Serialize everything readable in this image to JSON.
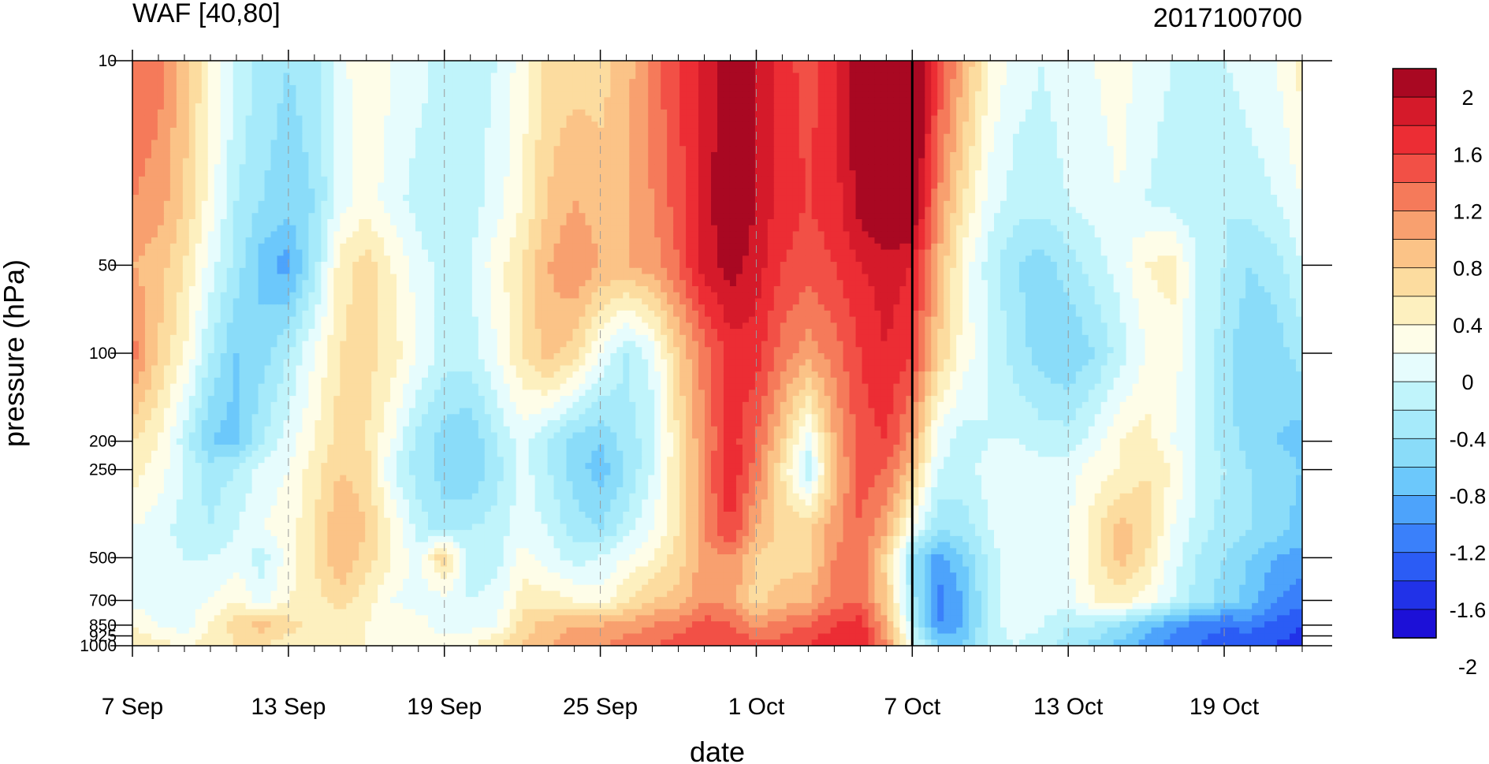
{
  "chart_data": {
    "type": "heatmap",
    "title": "WAF [40,80]",
    "subtitle": "2017100700",
    "xlabel": "date",
    "ylabel": "pressure (hPa)",
    "x_ticks": [
      "7 Sep",
      "13 Sep",
      "19 Sep",
      "25 Sep",
      "1 Oct",
      "7 Oct",
      "13 Oct",
      "19 Oct"
    ],
    "x_range": [
      "2017-09-07",
      "2017-10-22"
    ],
    "y_levels": [
      10,
      50,
      100,
      200,
      250,
      500,
      700,
      850,
      925,
      1000
    ],
    "y_tick_labels": [
      "10",
      "50",
      "100",
      "200",
      "250",
      "500",
      "700",
      "850",
      "925",
      "1000"
    ],
    "y_scale": "log",
    "y_direction": "reversed",
    "colorbar_labels": [
      "2",
      "1.6",
      "1.2",
      "0.8",
      "0.4",
      "0",
      "-0.4",
      "-0.8",
      "-1.2",
      "-1.6",
      "-2"
    ],
    "contour_levels": [
      -2.2,
      -2.0,
      -1.8,
      -1.6,
      -1.4,
      -1.2,
      -1.0,
      -0.8,
      -0.6,
      -0.4,
      -0.2,
      0.0,
      0.2,
      0.4,
      0.6,
      0.8,
      1.0,
      1.2,
      1.4,
      1.6,
      1.8,
      2.0,
      2.2
    ],
    "colors": [
      "#1c10d7",
      "#2132e8",
      "#2b5cf5",
      "#3a80fa",
      "#4da3fb",
      "#6cc8fb",
      "#8adcf9",
      "#a6eafa",
      "#c0f4fb",
      "#e6fcfd",
      "#fefde8",
      "#fdf0bf",
      "#fcdc9f",
      "#fbc387",
      "#f8a06f",
      "#f57a5a",
      "#f25046",
      "#ec2d34",
      "#d51a2a",
      "#a90822"
    ],
    "current_date_marker": "7 Oct",
    "grid": "dashed vertical lines at x ticks",
    "colorbar_placement": "right",
    "field_anchors": {
      "days": [
        0,
        1,
        2,
        3,
        4,
        5,
        6,
        7,
        8,
        9,
        10,
        11,
        12,
        13,
        14,
        15,
        16,
        17,
        18,
        19,
        20,
        21,
        22,
        23,
        24,
        25,
        26,
        27,
        28,
        29,
        30,
        31,
        32,
        33,
        34,
        35,
        36,
        37,
        38,
        39,
        40,
        41,
        42,
        43,
        44,
        45
      ],
      "levels": [
        10,
        30,
        50,
        100,
        200,
        250,
        400,
        500,
        700,
        850,
        1000
      ],
      "values": [
        [
          1.0,
          0.9,
          0.5,
          0.0,
          -0.4,
          -0.7,
          -0.8,
          -0.7,
          -0.3,
          0.0,
          -0.2,
          -0.3,
          -0.5,
          -0.5,
          -0.4,
          -0.1,
          0.3,
          0.3,
          0.3,
          0.5,
          0.9,
          1.2,
          1.5,
          1.7,
          1.6,
          1.3,
          1.1,
          1.4,
          1.8,
          2.2,
          2.2,
          1.2,
          0.6,
          0.0,
          -0.3,
          -0.4,
          -0.3,
          -0.2,
          -0.1,
          -0.3,
          -0.4,
          -0.5,
          -0.4,
          -0.3,
          -0.2,
          0.1
        ],
        [
          0.8,
          0.7,
          0.4,
          -0.1,
          -0.6,
          -0.8,
          -0.9,
          -0.8,
          -0.3,
          -0.1,
          -0.3,
          -0.5,
          -0.6,
          -0.5,
          -0.3,
          0.0,
          0.4,
          0.6,
          0.5,
          0.6,
          0.8,
          1.1,
          1.5,
          1.8,
          1.6,
          1.3,
          1.2,
          1.3,
          1.7,
          2.0,
          1.9,
          0.8,
          0.2,
          -0.3,
          -0.5,
          -0.5,
          -0.4,
          -0.3,
          -0.2,
          -0.4,
          -0.5,
          -0.6,
          -0.6,
          -0.5,
          -0.4,
          -0.2
        ],
        [
          0.6,
          0.5,
          0.2,
          -0.3,
          -0.7,
          -1.1,
          -1.3,
          -0.7,
          0.1,
          0.3,
          0.0,
          -0.3,
          -0.5,
          -0.4,
          -0.1,
          0.2,
          0.6,
          0.8,
          0.6,
          0.6,
          0.7,
          1.0,
          1.5,
          1.7,
          1.5,
          1.2,
          1.1,
          1.2,
          1.4,
          1.5,
          1.4,
          0.6,
          -0.1,
          -0.5,
          -0.8,
          -0.9,
          -0.7,
          -0.5,
          -0.3,
          0.0,
          0.1,
          -0.4,
          -0.6,
          -0.8,
          -0.7,
          -0.4
        ],
        [
          0.9,
          0.4,
          0.0,
          -0.6,
          -1.0,
          -0.9,
          -0.6,
          -0.2,
          0.2,
          0.3,
          0.1,
          -0.2,
          -0.5,
          -0.5,
          -0.2,
          0.2,
          0.5,
          0.3,
          -0.2,
          -0.6,
          -0.3,
          0.4,
          0.9,
          1.3,
          1.3,
          0.9,
          0.7,
          0.9,
          1.2,
          1.4,
          1.2,
          0.4,
          -0.1,
          -0.4,
          -0.7,
          -0.9,
          -1.0,
          -0.8,
          -0.5,
          -0.2,
          -0.1,
          -0.4,
          -0.7,
          -1.0,
          -0.9,
          -0.7
        ],
        [
          0.2,
          0.0,
          -0.5,
          -1.0,
          -1.1,
          -0.6,
          -0.3,
          0.0,
          0.3,
          0.2,
          -0.2,
          -0.7,
          -0.9,
          -1.0,
          -0.6,
          -0.3,
          -0.6,
          -0.9,
          -1.0,
          -0.7,
          -0.5,
          0.2,
          0.8,
          1.3,
          1.0,
          0.4,
          -0.3,
          0.6,
          1.1,
          1.2,
          0.7,
          -0.3,
          -0.5,
          -0.4,
          -0.4,
          -0.5,
          -0.5,
          -0.3,
          0.0,
          0.1,
          -0.2,
          -0.4,
          -0.7,
          -0.9,
          -1.0,
          -1.1
        ],
        [
          0.1,
          -0.1,
          -0.4,
          -0.7,
          -0.6,
          -0.3,
          -0.2,
          0.1,
          0.4,
          0.3,
          -0.4,
          -0.7,
          -0.9,
          -1.0,
          -0.7,
          -0.3,
          -0.6,
          -0.9,
          -1.1,
          -0.8,
          -0.4,
          0.2,
          0.8,
          1.4,
          0.9,
          0.2,
          -0.6,
          0.5,
          1.1,
          1.0,
          0.5,
          -0.4,
          -0.5,
          -0.3,
          -0.2,
          -0.3,
          -0.3,
          -0.1,
          0.0,
          0.2,
          0.0,
          -0.4,
          -0.6,
          -0.8,
          -0.9,
          -1.0
        ],
        [
          -0.2,
          -0.3,
          -0.5,
          -0.6,
          -0.4,
          -0.2,
          -0.1,
          0.2,
          0.6,
          0.4,
          0.0,
          -0.5,
          -0.7,
          -0.6,
          -0.5,
          -0.3,
          -0.4,
          -0.7,
          -0.8,
          -0.5,
          -0.2,
          0.2,
          0.8,
          1.2,
          0.6,
          0.3,
          0.4,
          0.7,
          1.0,
          0.6,
          -0.2,
          -0.8,
          -0.7,
          -0.4,
          -0.2,
          -0.3,
          -0.2,
          0.1,
          0.5,
          0.3,
          -0.2,
          -0.5,
          -0.7,
          -0.8,
          -0.9,
          -1.1
        ],
        [
          -0.2,
          -0.3,
          -0.4,
          -0.4,
          -0.3,
          -0.5,
          -0.1,
          0.2,
          0.6,
          0.3,
          0.0,
          -0.3,
          0.4,
          -0.6,
          -0.5,
          -0.1,
          -0.3,
          -0.5,
          -0.4,
          -0.2,
          0.0,
          0.3,
          0.7,
          0.8,
          0.4,
          0.3,
          0.3,
          0.8,
          1.0,
          0.3,
          -0.8,
          -1.3,
          -1.0,
          -0.5,
          -0.2,
          -0.3,
          -0.2,
          0.1,
          0.5,
          0.2,
          -0.3,
          -0.6,
          -0.8,
          -1.0,
          -1.2,
          -1.3
        ],
        [
          -0.3,
          -0.3,
          -0.3,
          -0.2,
          0.0,
          -0.3,
          0.0,
          0.1,
          0.3,
          0.1,
          -0.2,
          -0.3,
          -0.3,
          -0.4,
          -0.3,
          0.1,
          0.1,
          0.0,
          -0.1,
          0.2,
          0.4,
          0.5,
          0.8,
          0.7,
          0.3,
          0.5,
          0.6,
          0.9,
          1.0,
          0.4,
          -0.7,
          -1.5,
          -1.2,
          -0.5,
          -0.3,
          -0.3,
          -0.3,
          0.0,
          0.1,
          -0.1,
          -0.4,
          -0.7,
          -0.9,
          -1.1,
          -1.4,
          -1.5
        ],
        [
          0.0,
          -0.2,
          -0.3,
          0.0,
          0.3,
          0.5,
          0.3,
          0.1,
          0.1,
          0.0,
          -0.1,
          -0.1,
          -0.3,
          -0.3,
          -0.2,
          0.3,
          0.5,
          0.6,
          0.6,
          0.7,
          0.8,
          0.9,
          1.1,
          1.0,
          0.7,
          0.9,
          1.0,
          1.2,
          1.3,
          0.6,
          -0.5,
          -1.4,
          -1.2,
          -0.5,
          -0.3,
          -0.4,
          -0.6,
          -0.6,
          -0.8,
          -1.1,
          -1.3,
          -1.5,
          -1.6,
          -1.5,
          -1.7,
          -1.8
        ],
        [
          0.2,
          0.1,
          0.0,
          0.1,
          0.2,
          0.2,
          0.1,
          0.0,
          0.0,
          0.0,
          -0.1,
          -0.1,
          -0.1,
          0.0,
          0.2,
          0.4,
          0.6,
          0.7,
          0.8,
          0.9,
          1.0,
          1.1,
          1.2,
          1.2,
          1.1,
          1.1,
          1.2,
          1.4,
          1.4,
          0.8,
          -0.3,
          -1.0,
          -1.0,
          -0.5,
          -0.4,
          -0.5,
          -0.7,
          -0.9,
          -1.1,
          -1.3,
          -1.5,
          -1.6,
          -1.7,
          -1.8,
          -1.8,
          -1.9
        ]
      ]
    }
  }
}
